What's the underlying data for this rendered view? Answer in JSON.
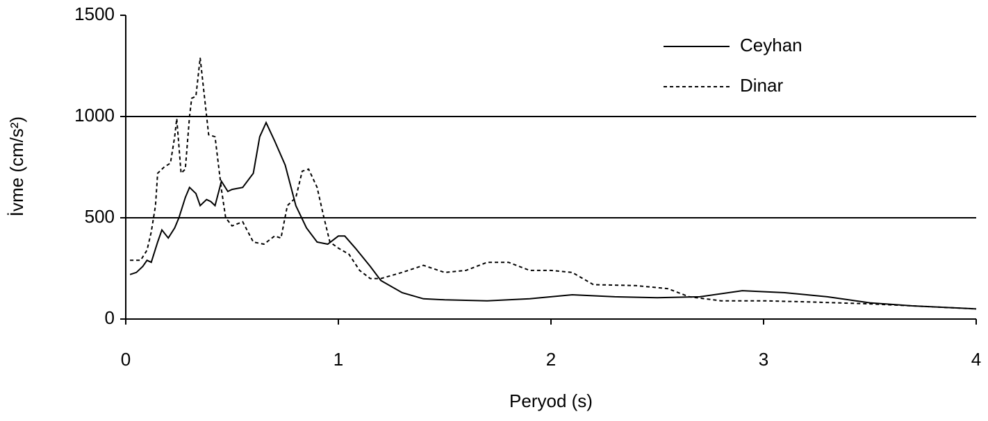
{
  "chart_data": {
    "type": "line",
    "xlabel": "Peryod (s)",
    "ylabel": "İvme (cm/s²)",
    "xlim": [
      0,
      4
    ],
    "xticks": [
      0,
      1,
      2,
      3,
      4
    ],
    "ylim": [
      0,
      1500
    ],
    "yticks": [
      0,
      500,
      1000,
      1500
    ],
    "grid": true,
    "legend": "upper right",
    "series": [
      {
        "name": "Ceyhan",
        "color": "#000000",
        "style": "solid",
        "x": [
          0.02,
          0.05,
          0.08,
          0.1,
          0.12,
          0.15,
          0.17,
          0.2,
          0.23,
          0.25,
          0.28,
          0.3,
          0.33,
          0.35,
          0.38,
          0.4,
          0.42,
          0.45,
          0.48,
          0.5,
          0.55,
          0.6,
          0.63,
          0.66,
          0.7,
          0.75,
          0.8,
          0.85,
          0.9,
          0.95,
          1.0,
          1.03,
          1.08,
          1.15,
          1.2,
          1.3,
          1.4,
          1.5,
          1.7,
          1.9,
          2.1,
          2.3,
          2.5,
          2.7,
          2.9,
          3.1,
          3.3,
          3.5,
          3.7,
          3.9,
          4.0
        ],
        "values": [
          220,
          230,
          260,
          290,
          280,
          380,
          440,
          400,
          450,
          500,
          600,
          650,
          620,
          560,
          590,
          580,
          560,
          680,
          630,
          640,
          650,
          720,
          900,
          970,
          880,
          760,
          560,
          450,
          380,
          370,
          410,
          410,
          350,
          260,
          190,
          130,
          100,
          95,
          90,
          100,
          120,
          110,
          105,
          110,
          140,
          130,
          110,
          80,
          65,
          55,
          50
        ]
      },
      {
        "name": "Dinar",
        "color": "#000000",
        "style": "dashed",
        "x": [
          0.02,
          0.07,
          0.1,
          0.12,
          0.14,
          0.15,
          0.18,
          0.21,
          0.23,
          0.24,
          0.26,
          0.28,
          0.3,
          0.31,
          0.33,
          0.35,
          0.37,
          0.39,
          0.42,
          0.45,
          0.47,
          0.5,
          0.55,
          0.6,
          0.65,
          0.7,
          0.73,
          0.76,
          0.8,
          0.83,
          0.86,
          0.9,
          0.93,
          0.96,
          1.0,
          1.05,
          1.1,
          1.15,
          1.2,
          1.3,
          1.4,
          1.5,
          1.6,
          1.7,
          1.8,
          1.9,
          2.0,
          2.1,
          2.2,
          2.4,
          2.55,
          2.65,
          2.8,
          3.0,
          3.2,
          3.5,
          3.7,
          4.0
        ],
        "values": [
          290,
          290,
          340,
          430,
          560,
          720,
          750,
          770,
          900,
          990,
          720,
          740,
          1000,
          1090,
          1100,
          1290,
          1100,
          910,
          900,
          640,
          500,
          460,
          480,
          380,
          370,
          410,
          400,
          560,
          600,
          730,
          740,
          650,
          510,
          380,
          350,
          320,
          240,
          200,
          200,
          230,
          265,
          230,
          240,
          280,
          280,
          240,
          240,
          230,
          170,
          165,
          150,
          110,
          90,
          90,
          85,
          75,
          65,
          50
        ]
      }
    ]
  }
}
